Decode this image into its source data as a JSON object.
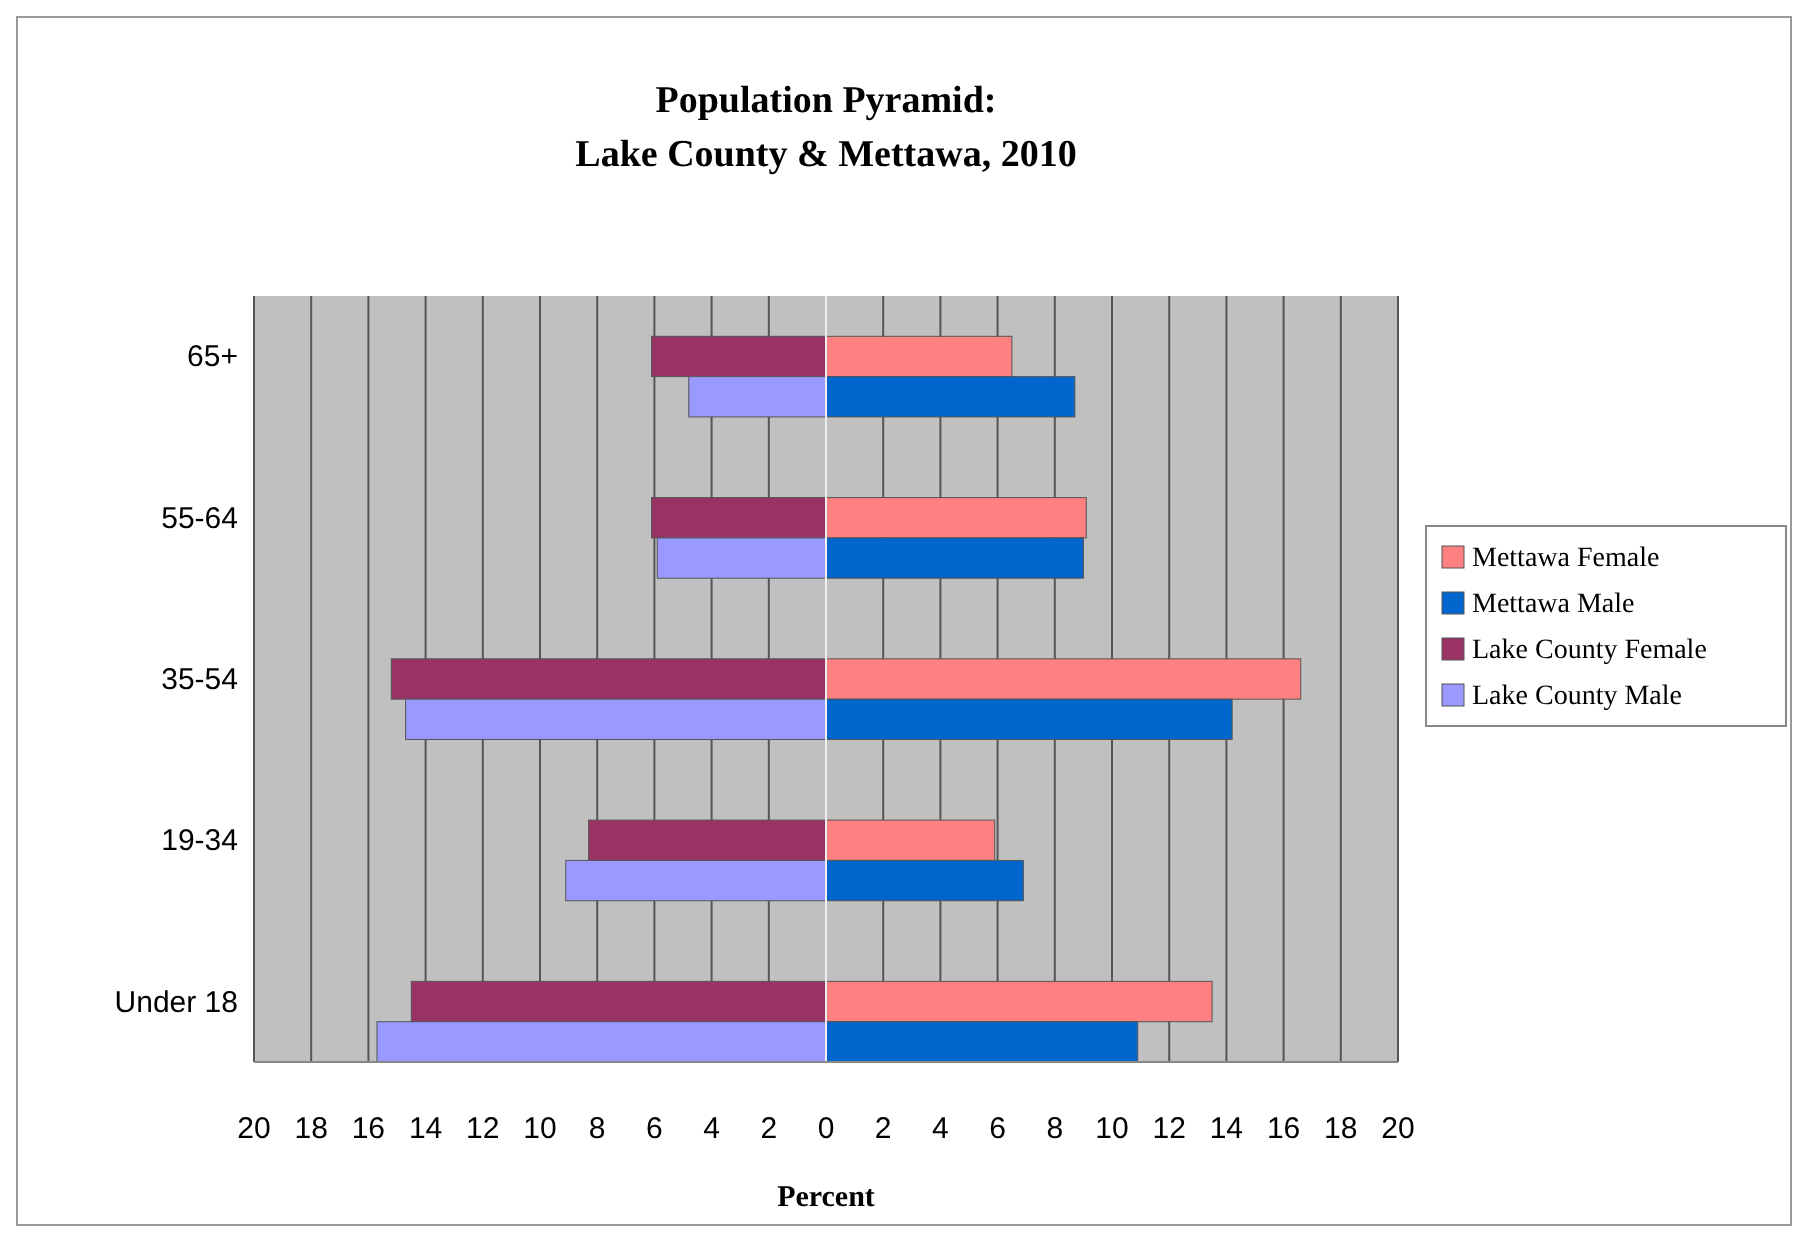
{
  "chart_data": {
    "type": "bar",
    "orientation": "horizontal",
    "stacked": true,
    "title": "Population Pyramid:\nLake County & Mettawa, 2010",
    "xlabel": "Percent",
    "categories": [
      null,
      "65+",
      null,
      null,
      null,
      "55-64",
      null,
      null,
      null,
      "35-54",
      null,
      null,
      null,
      "19-34",
      null,
      null,
      null,
      "Under 18",
      null
    ],
    "series": [
      {
        "name": "Mettawa Female",
        "color": "#ff8080",
        "values": [
          null,
          6.5,
          null,
          null,
          null,
          9.1,
          null,
          null,
          null,
          16.6,
          null,
          null,
          null,
          5.9,
          null,
          null,
          null,
          13.5,
          null
        ]
      },
      {
        "name": "Mettawa Male",
        "color": "#0066cc",
        "values": [
          null,
          null,
          8.7,
          null,
          null,
          null,
          9.0,
          null,
          null,
          null,
          14.2,
          null,
          null,
          null,
          6.9,
          null,
          null,
          null,
          10.9
        ]
      },
      {
        "name": "Lake County Female",
        "color": "#993366",
        "values": [
          null,
          -6.1,
          null,
          null,
          null,
          -6.1,
          null,
          null,
          null,
          -15.2,
          null,
          null,
          null,
          -8.3,
          null,
          null,
          null,
          -14.5,
          null
        ]
      },
      {
        "name": "Lake County Male",
        "color": "#9999ff",
        "values": [
          null,
          null,
          -4.8,
          null,
          null,
          null,
          -5.9,
          null,
          null,
          null,
          -14.7,
          null,
          null,
          null,
          -9.1,
          null,
          null,
          null,
          -15.7
        ]
      }
    ],
    "xlim": [
      -20,
      20
    ],
    "xticks": [
      {
        "value": -20,
        "label": "20"
      },
      {
        "value": -18,
        "label": "18"
      },
      {
        "value": -16,
        "label": "16"
      },
      {
        "value": -14,
        "label": "14"
      },
      {
        "value": -12,
        "label": "12"
      },
      {
        "value": -10,
        "label": "10"
      },
      {
        "value": -8,
        "label": "8"
      },
      {
        "value": -6,
        "label": "6"
      },
      {
        "value": -4,
        "label": "4"
      },
      {
        "value": -2,
        "label": "2"
      },
      0,
      2,
      4,
      6,
      8,
      10,
      12,
      14,
      16,
      18,
      20
    ],
    "grid": "x",
    "legend": "right"
  }
}
